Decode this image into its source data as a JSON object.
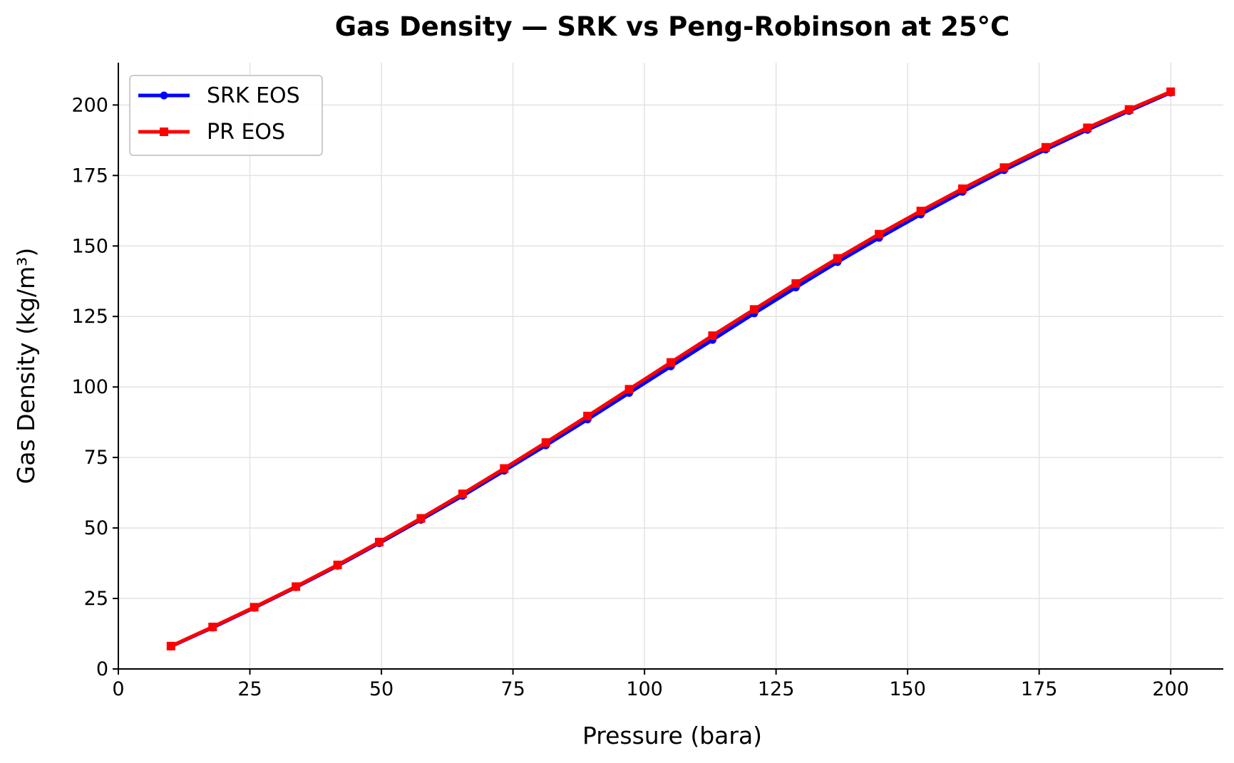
{
  "chart_data": {
    "type": "line",
    "title": "Gas Density — SRK vs Peng-Robinson at 25°C",
    "xlabel": "Pressure (bara)",
    "ylabel": "Gas Density (kg/m³)",
    "xlim": [
      0,
      210
    ],
    "ylim": [
      0,
      215
    ],
    "xticks": [
      0,
      25,
      50,
      75,
      100,
      125,
      150,
      175,
      200
    ],
    "yticks": [
      0,
      25,
      50,
      75,
      100,
      125,
      150,
      175,
      200
    ],
    "grid": true,
    "legend_position": "top-left",
    "x": [
      10,
      17.92,
      25.83,
      33.75,
      41.67,
      49.58,
      57.5,
      65.42,
      73.33,
      81.25,
      89.17,
      97.08,
      105,
      112.92,
      120.83,
      128.75,
      136.67,
      144.58,
      152.5,
      160.42,
      168.33,
      176.25,
      184.17,
      192.08,
      200
    ],
    "series": [
      {
        "name": "SRK EOS",
        "color": "#0000ff",
        "marker": "circle",
        "values": [
          8.0,
          14.7,
          21.7,
          29.0,
          36.6,
          44.6,
          52.9,
          61.4,
          70.3,
          79.3,
          88.5,
          97.9,
          107.3,
          116.7,
          126.1,
          135.3,
          144.3,
          152.9,
          161.2,
          169.2,
          176.9,
          184.2,
          191.2,
          197.9,
          204.4
        ]
      },
      {
        "name": "PR EOS",
        "color": "#ff0000",
        "marker": "square",
        "values": [
          8.1,
          14.9,
          21.9,
          29.2,
          36.9,
          45.0,
          53.4,
          62.1,
          71.1,
          80.3,
          89.7,
          99.2,
          108.7,
          118.2,
          127.5,
          136.7,
          145.6,
          154.2,
          162.4,
          170.3,
          177.8,
          185.0,
          191.9,
          198.4,
          204.7
        ]
      }
    ]
  }
}
